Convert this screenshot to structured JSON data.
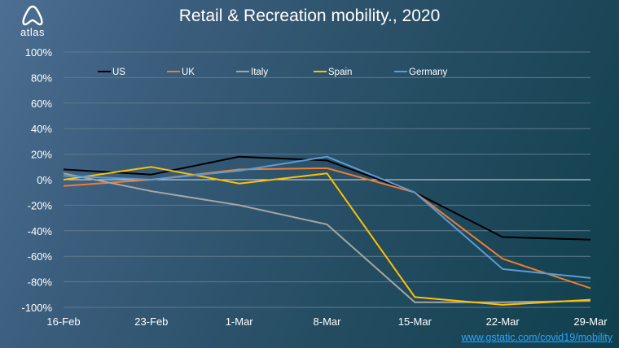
{
  "brand": {
    "logo_text": "atlas"
  },
  "title": "Retail & Recreation mobility., 2020",
  "source_link": "www.gstatic.com/covid19/mobility",
  "colors": {
    "grid": "#5d7a8c",
    "zero_line": "#d8e0e6",
    "text": "#ffffff",
    "link": "#2aa6ff"
  },
  "chart_data": {
    "type": "line",
    "title": "Retail & Recreation mobility., 2020",
    "x": [
      "16-Feb",
      "23-Feb",
      "1-Mar",
      "8-Mar",
      "15-Mar",
      "22-Mar",
      "29-Mar"
    ],
    "yticks": [
      "100%",
      "80%",
      "60%",
      "40%",
      "20%",
      "0%",
      "-20%",
      "-40%",
      "-60%",
      "-80%",
      "-100%"
    ],
    "ylim": [
      -100,
      100
    ],
    "grid": true,
    "legend_position": "top-left",
    "series": [
      {
        "name": "US",
        "color": "#000000",
        "values": [
          8,
          4,
          18,
          15,
          -10,
          -45,
          -47
        ]
      },
      {
        "name": "UK",
        "color": "#ed7d31",
        "values": [
          -5,
          0,
          8,
          9,
          -10,
          -62,
          -85
        ]
      },
      {
        "name": "Italy",
        "color": "#a5a5a5",
        "values": [
          5,
          -9,
          -20,
          -35,
          -96,
          -96,
          -95
        ]
      },
      {
        "name": "Spain",
        "color": "#ffc000",
        "values": [
          0,
          10,
          -3,
          5,
          -92,
          -98,
          -94
        ]
      },
      {
        "name": "Germany",
        "color": "#5b9bd5",
        "values": [
          3,
          0,
          7,
          18,
          -10,
          -70,
          -77
        ]
      }
    ]
  }
}
